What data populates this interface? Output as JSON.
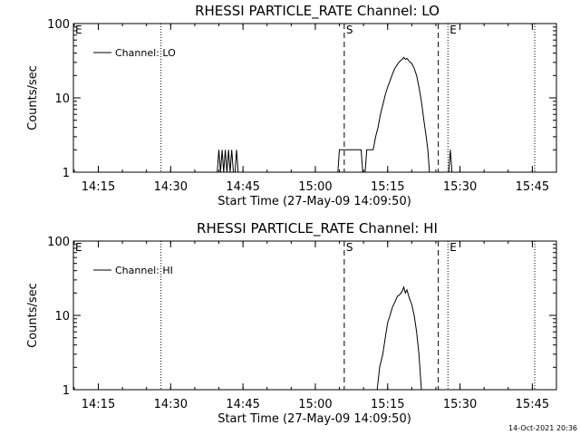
{
  "footer": {
    "timestamp": "14-Oct-2021 20:36"
  },
  "chart_data": [
    {
      "type": "line",
      "title": "RHESSI PARTICLE_RATE Channel: LO",
      "xlabel": "Start Time (27-May-09 14:09:50)",
      "ylabel": "Counts/sec",
      "y_scale": "log",
      "xlim": [
        "14:09:50",
        "15:50:00"
      ],
      "ylim": [
        1,
        100
      ],
      "x_ticks": [
        "14:15",
        "14:30",
        "14:45",
        "15:00",
        "15:15",
        "15:30",
        "15:45"
      ],
      "y_ticks": [
        "1",
        "10",
        "100"
      ],
      "legend": {
        "placement": "top-left",
        "entries": [
          "Channel: LO"
        ]
      },
      "markers": [
        {
          "label": "E",
          "time": "14:09:50",
          "style": "none"
        },
        {
          "label": "",
          "time": "14:28:00",
          "style": "dotted"
        },
        {
          "label": "S",
          "time": "15:06:00",
          "style": "dashed"
        },
        {
          "label": "",
          "time": "15:25:30",
          "style": "dashed"
        },
        {
          "label": "E",
          "time": "15:27:30",
          "style": "dotted"
        },
        {
          "label": "",
          "time": "15:45:30",
          "style": "dotted"
        }
      ],
      "series": [
        {
          "name": "Channel: LO",
          "segments": [
            [
              [
                "14:39:40",
                1
              ],
              [
                "14:40:00",
                2
              ],
              [
                "14:40:20",
                1
              ],
              [
                "14:40:40",
                2
              ],
              [
                "14:41:00",
                1
              ],
              [
                "14:41:20",
                2
              ],
              [
                "14:41:40",
                1
              ],
              [
                "14:42:00",
                2
              ],
              [
                "14:42:20",
                1
              ],
              [
                "14:42:40",
                2
              ],
              [
                "14:43:00",
                1
              ],
              [
                "14:43:20",
                1
              ],
              [
                "14:43:40",
                2
              ],
              [
                "14:44:00",
                1
              ]
            ],
            [
              [
                "15:04:40",
                1
              ],
              [
                "15:05:00",
                2
              ],
              [
                "15:09:30",
                2
              ],
              [
                "15:09:50",
                1
              ],
              [
                "15:10:20",
                1
              ],
              [
                "15:10:40",
                2
              ],
              [
                "15:12:00",
                2
              ],
              [
                "15:12:30",
                3
              ],
              [
                "15:13:00",
                4
              ],
              [
                "15:13:30",
                6
              ],
              [
                "15:14:00",
                8
              ],
              [
                "15:14:30",
                11
              ],
              [
                "15:15:00",
                14
              ],
              [
                "15:15:30",
                17
              ],
              [
                "15:16:00",
                21
              ],
              [
                "15:16:30",
                25
              ],
              [
                "15:17:00",
                28
              ],
              [
                "15:17:30",
                31
              ],
              [
                "15:18:00",
                33
              ],
              [
                "15:18:20",
                35
              ],
              [
                "15:18:40",
                33
              ],
              [
                "15:19:00",
                34
              ],
              [
                "15:19:30",
                31
              ],
              [
                "15:20:00",
                29
              ],
              [
                "15:20:30",
                25
              ],
              [
                "15:21:00",
                20
              ],
              [
                "15:21:30",
                14
              ],
              [
                "15:22:00",
                9
              ],
              [
                "15:22:30",
                5
              ],
              [
                "15:23:00",
                3
              ],
              [
                "15:23:20",
                2
              ],
              [
                "15:23:40",
                1
              ]
            ],
            [
              [
                "15:27:40",
                1
              ],
              [
                "15:28:00",
                2
              ],
              [
                "15:28:20",
                1
              ]
            ]
          ]
        }
      ]
    },
    {
      "type": "line",
      "title": "RHESSI PARTICLE_RATE Channel: HI",
      "xlabel": "Start Time (27-May-09 14:09:50)",
      "ylabel": "Counts/sec",
      "y_scale": "log",
      "xlim": [
        "14:09:50",
        "15:50:00"
      ],
      "ylim": [
        1,
        100
      ],
      "x_ticks": [
        "14:15",
        "14:30",
        "14:45",
        "15:00",
        "15:15",
        "15:30",
        "15:45"
      ],
      "y_ticks": [
        "1",
        "10",
        "100"
      ],
      "legend": {
        "placement": "top-left",
        "entries": [
          "Channel: HI"
        ]
      },
      "markers": [
        {
          "label": "E",
          "time": "14:09:50",
          "style": "none"
        },
        {
          "label": "",
          "time": "14:28:00",
          "style": "dotted"
        },
        {
          "label": "S",
          "time": "15:06:00",
          "style": "dashed"
        },
        {
          "label": "",
          "time": "15:25:30",
          "style": "dashed"
        },
        {
          "label": "E",
          "time": "15:27:30",
          "style": "dotted"
        },
        {
          "label": "",
          "time": "15:45:30",
          "style": "dotted"
        }
      ],
      "series": [
        {
          "name": "Channel: HI",
          "segments": [
            [
              [
                "15:12:50",
                1
              ],
              [
                "15:13:20",
                2
              ],
              [
                "15:14:00",
                3
              ],
              [
                "15:14:30",
                5
              ],
              [
                "15:15:00",
                8
              ],
              [
                "15:15:30",
                10
              ],
              [
                "15:16:00",
                13
              ],
              [
                "15:16:30",
                15
              ],
              [
                "15:17:00",
                18
              ],
              [
                "15:17:30",
                19
              ],
              [
                "15:18:00",
                21
              ],
              [
                "15:18:20",
                24
              ],
              [
                "15:18:40",
                20
              ],
              [
                "15:19:00",
                22
              ],
              [
                "15:19:30",
                17
              ],
              [
                "15:20:00",
                14
              ],
              [
                "15:20:30",
                10
              ],
              [
                "15:21:00",
                6
              ],
              [
                "15:21:30",
                3
              ],
              [
                "15:22:00",
                1
              ]
            ]
          ]
        }
      ]
    }
  ]
}
